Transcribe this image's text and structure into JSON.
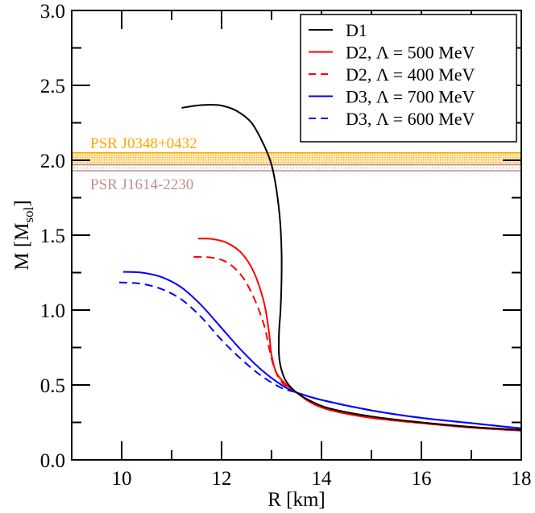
{
  "chart_data": {
    "type": "line",
    "title": "",
    "xlabel": "R [km]",
    "ylabel": "M [M_sol]",
    "ylabel_main": "M [M",
    "ylabel_sub": "sol",
    "ylabel_close": "]",
    "xlim": [
      9,
      18
    ],
    "ylim": [
      0.0,
      3.0
    ],
    "x_ticks": [
      10,
      12,
      14,
      16,
      18
    ],
    "x_tick_labels": [
      "10",
      "12",
      "14",
      "16",
      "18"
    ],
    "y_ticks": [
      0.0,
      0.5,
      1.0,
      1.5,
      2.0,
      2.5,
      3.0
    ],
    "y_tick_labels": [
      "0.0",
      "0.5",
      "1.0",
      "1.5",
      "2.0",
      "2.5",
      "3.0"
    ],
    "grid": false,
    "legend_position": "upper right",
    "bands": [
      {
        "name": "PSR J0348+0432",
        "y_range": [
          1.97,
          2.05
        ],
        "color": "#ffa500"
      },
      {
        "name": "PSR J1614-2230",
        "y_range": [
          1.93,
          1.97
        ],
        "color": "#bc8f8f"
      }
    ],
    "series": [
      {
        "name": "D1",
        "color": "#000000",
        "dash": "solid",
        "x": [
          11.2,
          11.5,
          11.75,
          12.0,
          12.3,
          12.6,
          12.85,
          13.0,
          13.1,
          13.17,
          13.2,
          13.2,
          13.18,
          13.15,
          13.15,
          13.2,
          13.3,
          13.5,
          13.8,
          14.2,
          15.0,
          16.0,
          17.0,
          18.0
        ],
        "y": [
          2.35,
          2.365,
          2.37,
          2.365,
          2.33,
          2.25,
          2.1,
          1.97,
          1.8,
          1.6,
          1.4,
          1.2,
          1.0,
          0.85,
          0.7,
          0.6,
          0.52,
          0.45,
          0.39,
          0.34,
          0.29,
          0.25,
          0.22,
          0.2
        ]
      },
      {
        "name": "D2, Λ = 500 MeV",
        "color": "#ff0000",
        "dash": "solid",
        "x": [
          11.53,
          11.8,
          12.1,
          12.4,
          12.65,
          12.85,
          12.95,
          13.0,
          13.1,
          13.3,
          13.5,
          13.8,
          14.2,
          15.0,
          16.0,
          17.0,
          18.0
        ],
        "y": [
          1.477,
          1.475,
          1.45,
          1.38,
          1.25,
          1.05,
          0.85,
          0.7,
          0.58,
          0.5,
          0.45,
          0.38,
          0.33,
          0.28,
          0.245,
          0.215,
          0.195
        ]
      },
      {
        "name": "D2, Λ = 400 MeV",
        "color": "#ff0000",
        "dash": "dashed",
        "x": [
          11.44,
          11.8,
          12.1,
          12.4,
          12.65,
          12.85,
          12.95,
          13.05,
          13.2,
          13.5,
          13.8,
          14.2,
          15.0,
          16.0,
          17.0,
          18.0
        ],
        "y": [
          1.355,
          1.35,
          1.32,
          1.23,
          1.08,
          0.9,
          0.75,
          0.62,
          0.52,
          0.45,
          0.38,
          0.33,
          0.28,
          0.245,
          0.215,
          0.195
        ]
      },
      {
        "name": "D3, Λ = 700 MeV",
        "color": "#0000ff",
        "dash": "solid",
        "x": [
          10.03,
          10.4,
          10.8,
          11.2,
          11.6,
          12.0,
          12.4,
          12.8,
          13.2,
          13.5,
          14.0,
          15.0,
          16.0,
          17.0,
          18.0
        ],
        "y": [
          1.255,
          1.25,
          1.22,
          1.15,
          1.03,
          0.88,
          0.73,
          0.6,
          0.5,
          0.45,
          0.4,
          0.33,
          0.28,
          0.245,
          0.21
        ]
      },
      {
        "name": "D3, Λ = 600 MeV",
        "color": "#0000ff",
        "dash": "dashed",
        "x": [
          9.95,
          10.4,
          10.8,
          11.2,
          11.6,
          12.0,
          12.4,
          12.8,
          13.2,
          13.5,
          14.0,
          15.0,
          16.0,
          17.0,
          18.0
        ],
        "y": [
          1.185,
          1.175,
          1.14,
          1.07,
          0.95,
          0.8,
          0.67,
          0.56,
          0.48,
          0.45,
          0.4,
          0.33,
          0.28,
          0.245,
          0.21
        ]
      }
    ]
  }
}
